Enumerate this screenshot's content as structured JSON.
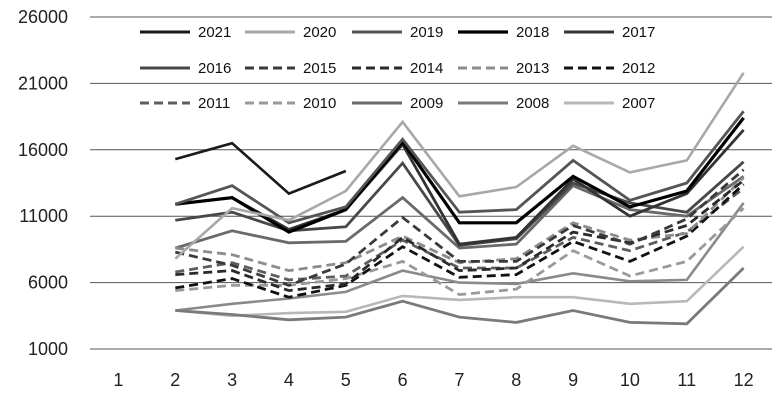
{
  "chart_data": {
    "type": "line",
    "title": "",
    "xlabel": "",
    "ylabel": "",
    "x": [
      1,
      2,
      3,
      4,
      5,
      6,
      7,
      8,
      9,
      10,
      11,
      12
    ],
    "x_tick_labels": [
      "1",
      "2",
      "3",
      "4",
      "5",
      "6",
      "7",
      "8",
      "9",
      "10",
      "11",
      "12"
    ],
    "ylim": [
      1000,
      26000
    ],
    "y_ticks": [
      1000,
      6000,
      11000,
      16000,
      21000,
      26000
    ],
    "y_tick_labels": [
      "1000",
      "6000",
      "11000",
      "16000",
      "21000",
      "26000"
    ],
    "grid": "horizontal",
    "legend_position": "top-left",
    "series": [
      {
        "name": "2021",
        "color": "#1a1a1a",
        "dash": "solid",
        "width": 2.6,
        "values": [
          null,
          15300,
          16500,
          12700,
          14400,
          null,
          null,
          null,
          null,
          null,
          null,
          null
        ]
      },
      {
        "name": "2020",
        "color": "#a8a8a8",
        "dash": "solid",
        "width": 2.6,
        "values": [
          null,
          7800,
          11600,
          10700,
          12900,
          18100,
          12500,
          13200,
          16300,
          14300,
          15200,
          21800
        ]
      },
      {
        "name": "2019",
        "color": "#555555",
        "dash": "solid",
        "width": 2.8,
        "values": [
          null,
          11900,
          13300,
          10500,
          11700,
          16800,
          11300,
          11500,
          15200,
          12200,
          13500,
          18900
        ]
      },
      {
        "name": "2018",
        "color": "#000000",
        "dash": "solid",
        "width": 3.2,
        "values": [
          null,
          11900,
          12400,
          9800,
          11500,
          16600,
          10500,
          10500,
          14000,
          11700,
          12900,
          18400
        ]
      },
      {
        "name": "2017",
        "color": "#333333",
        "dash": "solid",
        "width": 2.8,
        "values": [
          null,
          11900,
          12400,
          10000,
          11500,
          16400,
          8900,
          9400,
          13800,
          11000,
          12700,
          17500
        ]
      },
      {
        "name": "2016",
        "color": "#484848",
        "dash": "solid",
        "width": 2.8,
        "values": [
          null,
          10700,
          11300,
          9900,
          10200,
          15000,
          8800,
          9300,
          13500,
          12000,
          11300,
          15100
        ]
      },
      {
        "name": "2015",
        "color": "#3a3a3a",
        "dash": "dash",
        "width": 2.8,
        "values": [
          null,
          8300,
          7300,
          5800,
          7400,
          10900,
          7600,
          7600,
          10300,
          8900,
          10800,
          14500
        ]
      },
      {
        "name": "2014",
        "color": "#2a2a2a",
        "dash": "dash",
        "width": 2.8,
        "values": [
          null,
          6600,
          6900,
          5400,
          5900,
          9400,
          6900,
          7100,
          9800,
          9000,
          10300,
          13700
        ]
      },
      {
        "name": "2013",
        "color": "#8c8c8c",
        "dash": "dash",
        "width": 2.8,
        "values": [
          null,
          8600,
          8100,
          6900,
          7500,
          9500,
          7500,
          7800,
          10500,
          9200,
          9700,
          13900
        ]
      },
      {
        "name": "2012",
        "color": "#111111",
        "dash": "dash",
        "width": 2.8,
        "values": [
          null,
          5600,
          6300,
          4900,
          5800,
          8700,
          6400,
          6600,
          9100,
          7600,
          9500,
          13400
        ]
      },
      {
        "name": "2011",
        "color": "#5e5e5e",
        "dash": "dash",
        "width": 2.8,
        "values": [
          null,
          6800,
          7500,
          6200,
          6500,
          9200,
          7100,
          7100,
          9400,
          8400,
          9800,
          13100
        ]
      },
      {
        "name": "2010",
        "color": "#9a9a9a",
        "dash": "dash",
        "width": 2.8,
        "values": [
          null,
          5400,
          5800,
          5800,
          6300,
          7600,
          5100,
          5500,
          8400,
          6500,
          7600,
          11600
        ]
      },
      {
        "name": "2009",
        "color": "#6a6a6a",
        "dash": "solid",
        "width": 2.8,
        "values": [
          null,
          8600,
          9900,
          9000,
          9100,
          12400,
          8600,
          8900,
          13300,
          11500,
          11000,
          14000
        ]
      },
      {
        "name": "2008",
        "color": "#7a7a7a",
        "dash": "solid",
        "width": 2.8,
        "values": [
          null,
          3900,
          3600,
          3200,
          3400,
          4600,
          3400,
          3000,
          3900,
          3000,
          2900,
          7100
        ]
      },
      {
        "name": "2007",
        "color": "#b8b8b8",
        "dash": "solid",
        "width": 2.6,
        "values": [
          null,
          3900,
          3500,
          3700,
          3800,
          5000,
          4700,
          4900,
          4900,
          4400,
          4600,
          8700
        ]
      },
      {
        "name": "",
        "color": "#8a8a8a",
        "dash": "solid",
        "width": 2.6,
        "values": [
          null,
          3900,
          4400,
          4800,
          5300,
          6900,
          6000,
          5900,
          6700,
          6100,
          6200,
          12000
        ]
      }
    ]
  }
}
